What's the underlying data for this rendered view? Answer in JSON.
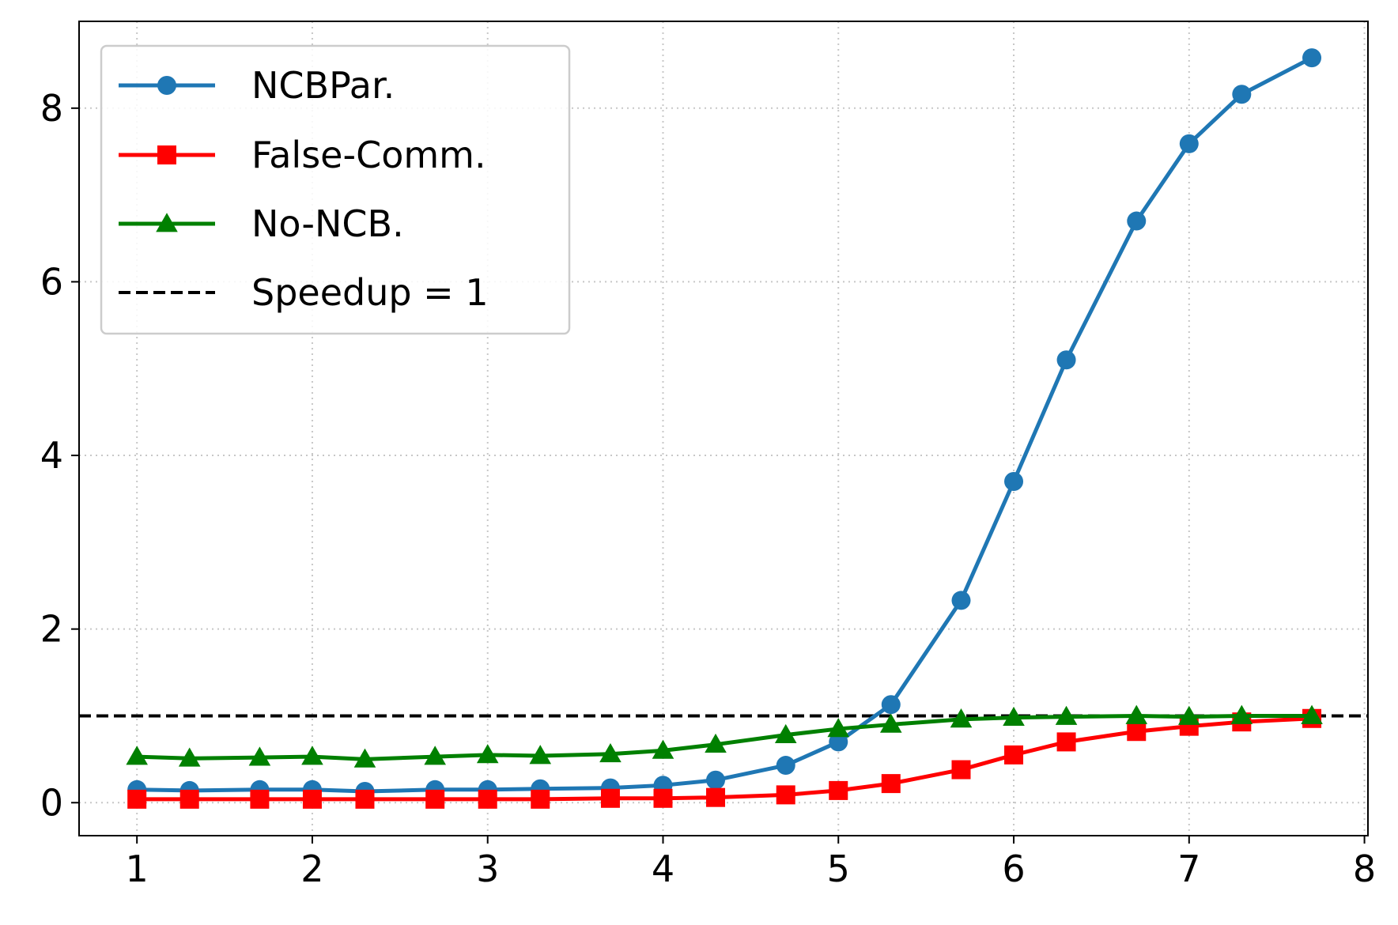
{
  "chart_data": {
    "type": "line",
    "title": "",
    "xlabel": "",
    "ylabel": "",
    "xlim": [
      0.67,
      8.02
    ],
    "ylim": [
      -0.38,
      9.0
    ],
    "xticks": [
      1,
      2,
      3,
      4,
      5,
      6,
      7,
      8
    ],
    "yticks": [
      0,
      2,
      4,
      6,
      8
    ],
    "xtick_labels": [
      "1",
      "2",
      "3",
      "4",
      "5",
      "6",
      "7",
      "8"
    ],
    "ytick_labels": [
      "0",
      "2",
      "4",
      "6",
      "8"
    ],
    "grid": true,
    "legend_position": "top-left",
    "x": [
      1.0,
      1.3,
      1.7,
      2.0,
      2.3,
      2.7,
      3.0,
      3.3,
      3.7,
      4.0,
      4.3,
      4.7,
      5.0,
      5.3,
      5.7,
      6.0,
      6.3,
      6.7,
      7.0,
      7.3,
      7.7
    ],
    "series": [
      {
        "name": "NCBPar.",
        "color": "#1f77b4",
        "marker": "circle",
        "values": [
          0.15,
          0.14,
          0.15,
          0.15,
          0.13,
          0.15,
          0.15,
          0.16,
          0.17,
          0.2,
          0.26,
          0.43,
          0.7,
          1.13,
          2.33,
          3.7,
          5.1,
          6.7,
          7.59,
          8.16,
          8.58
        ]
      },
      {
        "name": "False-Comm.",
        "color": "#ff0000",
        "marker": "square",
        "values": [
          0.04,
          0.04,
          0.04,
          0.04,
          0.04,
          0.04,
          0.04,
          0.04,
          0.05,
          0.05,
          0.06,
          0.09,
          0.14,
          0.22,
          0.38,
          0.55,
          0.7,
          0.82,
          0.88,
          0.93,
          0.97
        ]
      },
      {
        "name": "No-NCB.",
        "color": "#008000",
        "marker": "triangle",
        "values": [
          0.53,
          0.51,
          0.52,
          0.53,
          0.5,
          0.53,
          0.55,
          0.54,
          0.56,
          0.6,
          0.67,
          0.78,
          0.85,
          0.9,
          0.96,
          0.98,
          0.99,
          1.0,
          0.99,
          1.0,
          1.0
        ]
      },
      {
        "name": "Speedup = 1",
        "color": "#000000",
        "marker": "none",
        "dashed": true,
        "constant": 1
      }
    ]
  }
}
